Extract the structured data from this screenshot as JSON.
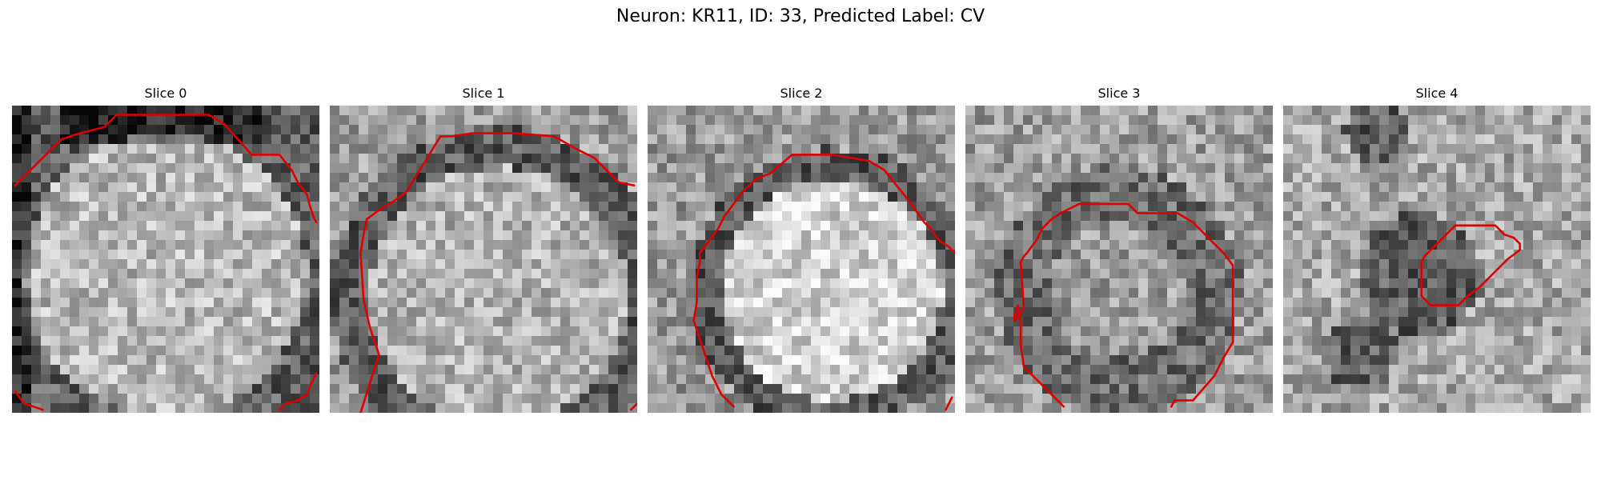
{
  "figure": {
    "title": "Neuron: KR11, ID: 33, Predicted Label: CV"
  },
  "colors": {
    "contour": "#e00000"
  },
  "panels": [
    {
      "title": "Slice 0",
      "tone": "center-bright",
      "contours": [
        [
          [
            0.01,
            0.26
          ],
          [
            0.1,
            0.17
          ],
          [
            0.16,
            0.11
          ],
          [
            0.22,
            0.09
          ],
          [
            0.3,
            0.07
          ],
          [
            0.34,
            0.03
          ],
          [
            0.45,
            0.03
          ],
          [
            0.64,
            0.03
          ],
          [
            0.69,
            0.06
          ],
          [
            0.78,
            0.16
          ],
          [
            0.87,
            0.16
          ],
          [
            0.91,
            0.21
          ],
          [
            0.93,
            0.25
          ],
          [
            0.96,
            0.29
          ],
          [
            0.97,
            0.33
          ],
          [
            0.98,
            0.36
          ],
          [
            0.99,
            0.38
          ]
        ],
        [
          [
            0.01,
            0.93
          ],
          [
            0.04,
            0.97
          ],
          [
            0.07,
            0.98
          ],
          [
            0.1,
            0.99
          ]
        ],
        [
          [
            0.87,
            0.99
          ],
          [
            0.89,
            0.97
          ],
          [
            0.93,
            0.96
          ],
          [
            0.96,
            0.94
          ],
          [
            0.98,
            0.89
          ],
          [
            0.99,
            0.87
          ]
        ]
      ]
    },
    {
      "title": "Slice 1",
      "tone": "ring",
      "contours": [
        [
          [
            0.1,
            1.0
          ],
          [
            0.16,
            0.81
          ],
          [
            0.13,
            0.72
          ],
          [
            0.11,
            0.63
          ],
          [
            0.1,
            0.48
          ],
          [
            0.11,
            0.42
          ],
          [
            0.12,
            0.37
          ],
          [
            0.16,
            0.34
          ],
          [
            0.21,
            0.31
          ],
          [
            0.25,
            0.28
          ],
          [
            0.36,
            0.1
          ],
          [
            0.4,
            0.1
          ],
          [
            0.46,
            0.09
          ],
          [
            0.6,
            0.09
          ],
          [
            0.73,
            0.1
          ],
          [
            0.8,
            0.14
          ],
          [
            0.86,
            0.17
          ],
          [
            0.92,
            0.23
          ],
          [
            0.94,
            0.25
          ],
          [
            0.99,
            0.26
          ]
        ],
        [
          [
            0.98,
            0.99
          ],
          [
            1.0,
            0.97
          ]
        ]
      ]
    },
    {
      "title": "Slice 2",
      "tone": "ring-bright",
      "contours": [
        [
          [
            0.28,
            0.98
          ],
          [
            0.24,
            0.94
          ],
          [
            0.21,
            0.88
          ],
          [
            0.19,
            0.82
          ],
          [
            0.17,
            0.76
          ],
          [
            0.15,
            0.7
          ],
          [
            0.16,
            0.64
          ],
          [
            0.16,
            0.56
          ],
          [
            0.17,
            0.51
          ],
          [
            0.17,
            0.48
          ],
          [
            0.2,
            0.44
          ],
          [
            0.23,
            0.4
          ],
          [
            0.25,
            0.36
          ],
          [
            0.31,
            0.28
          ],
          [
            0.35,
            0.24
          ],
          [
            0.4,
            0.22
          ],
          [
            0.47,
            0.16
          ],
          [
            0.6,
            0.16
          ],
          [
            0.72,
            0.18
          ],
          [
            0.77,
            0.21
          ],
          [
            0.81,
            0.26
          ],
          [
            0.85,
            0.31
          ],
          [
            0.9,
            0.38
          ],
          [
            0.92,
            0.4
          ],
          [
            0.95,
            0.44
          ],
          [
            0.98,
            0.46
          ],
          [
            1.0,
            0.48
          ]
        ],
        [
          [
            0.97,
            0.99
          ],
          [
            0.99,
            0.95
          ]
        ]
      ]
    },
    {
      "title": "Slice 3",
      "tone": "mottled",
      "contours": [
        [
          [
            0.32,
            0.98
          ],
          [
            0.25,
            0.91
          ],
          [
            0.19,
            0.85
          ],
          [
            0.18,
            0.78
          ],
          [
            0.18,
            0.7
          ],
          [
            0.17,
            0.65
          ],
          [
            0.16,
            0.7
          ],
          [
            0.16,
            0.7
          ],
          [
            0.16,
            0.68
          ],
          [
            0.16,
            0.69
          ],
          [
            0.16,
            0.7
          ],
          [
            0.16,
            0.7
          ],
          [
            0.17,
            0.69
          ],
          [
            0.19,
            0.66
          ],
          [
            0.18,
            0.51
          ],
          [
            0.19,
            0.49
          ],
          [
            0.2,
            0.48
          ],
          [
            0.23,
            0.44
          ],
          [
            0.25,
            0.4
          ],
          [
            0.28,
            0.37
          ],
          [
            0.31,
            0.35
          ],
          [
            0.33,
            0.34
          ],
          [
            0.37,
            0.32
          ],
          [
            0.53,
            0.32
          ],
          [
            0.56,
            0.35
          ],
          [
            0.69,
            0.35
          ],
          [
            0.74,
            0.38
          ],
          [
            0.77,
            0.41
          ],
          [
            0.81,
            0.45
          ],
          [
            0.84,
            0.48
          ],
          [
            0.87,
            0.52
          ],
          [
            0.87,
            0.56
          ],
          [
            0.87,
            0.77
          ],
          [
            0.84,
            0.82
          ],
          [
            0.81,
            0.88
          ],
          [
            0.74,
            0.96
          ],
          [
            0.68,
            0.96
          ],
          [
            0.67,
            0.98
          ]
        ]
      ]
    },
    {
      "title": "Slice 4",
      "tone": "dark-patch",
      "contours": [
        [
          [
            0.52,
            0.65
          ],
          [
            0.48,
            0.65
          ],
          [
            0.46,
            0.63
          ],
          [
            0.45,
            0.62
          ],
          [
            0.45,
            0.51
          ],
          [
            0.46,
            0.49
          ],
          [
            0.47,
            0.48
          ],
          [
            0.53,
            0.42
          ],
          [
            0.56,
            0.39
          ],
          [
            0.57,
            0.39
          ],
          [
            0.69,
            0.39
          ],
          [
            0.72,
            0.42
          ],
          [
            0.75,
            0.43
          ],
          [
            0.77,
            0.45
          ],
          [
            0.77,
            0.47
          ],
          [
            0.73,
            0.5
          ],
          [
            0.7,
            0.53
          ],
          [
            0.67,
            0.56
          ],
          [
            0.64,
            0.59
          ],
          [
            0.6,
            0.62
          ],
          [
            0.57,
            0.65
          ],
          [
            0.52,
            0.65
          ]
        ]
      ]
    }
  ]
}
